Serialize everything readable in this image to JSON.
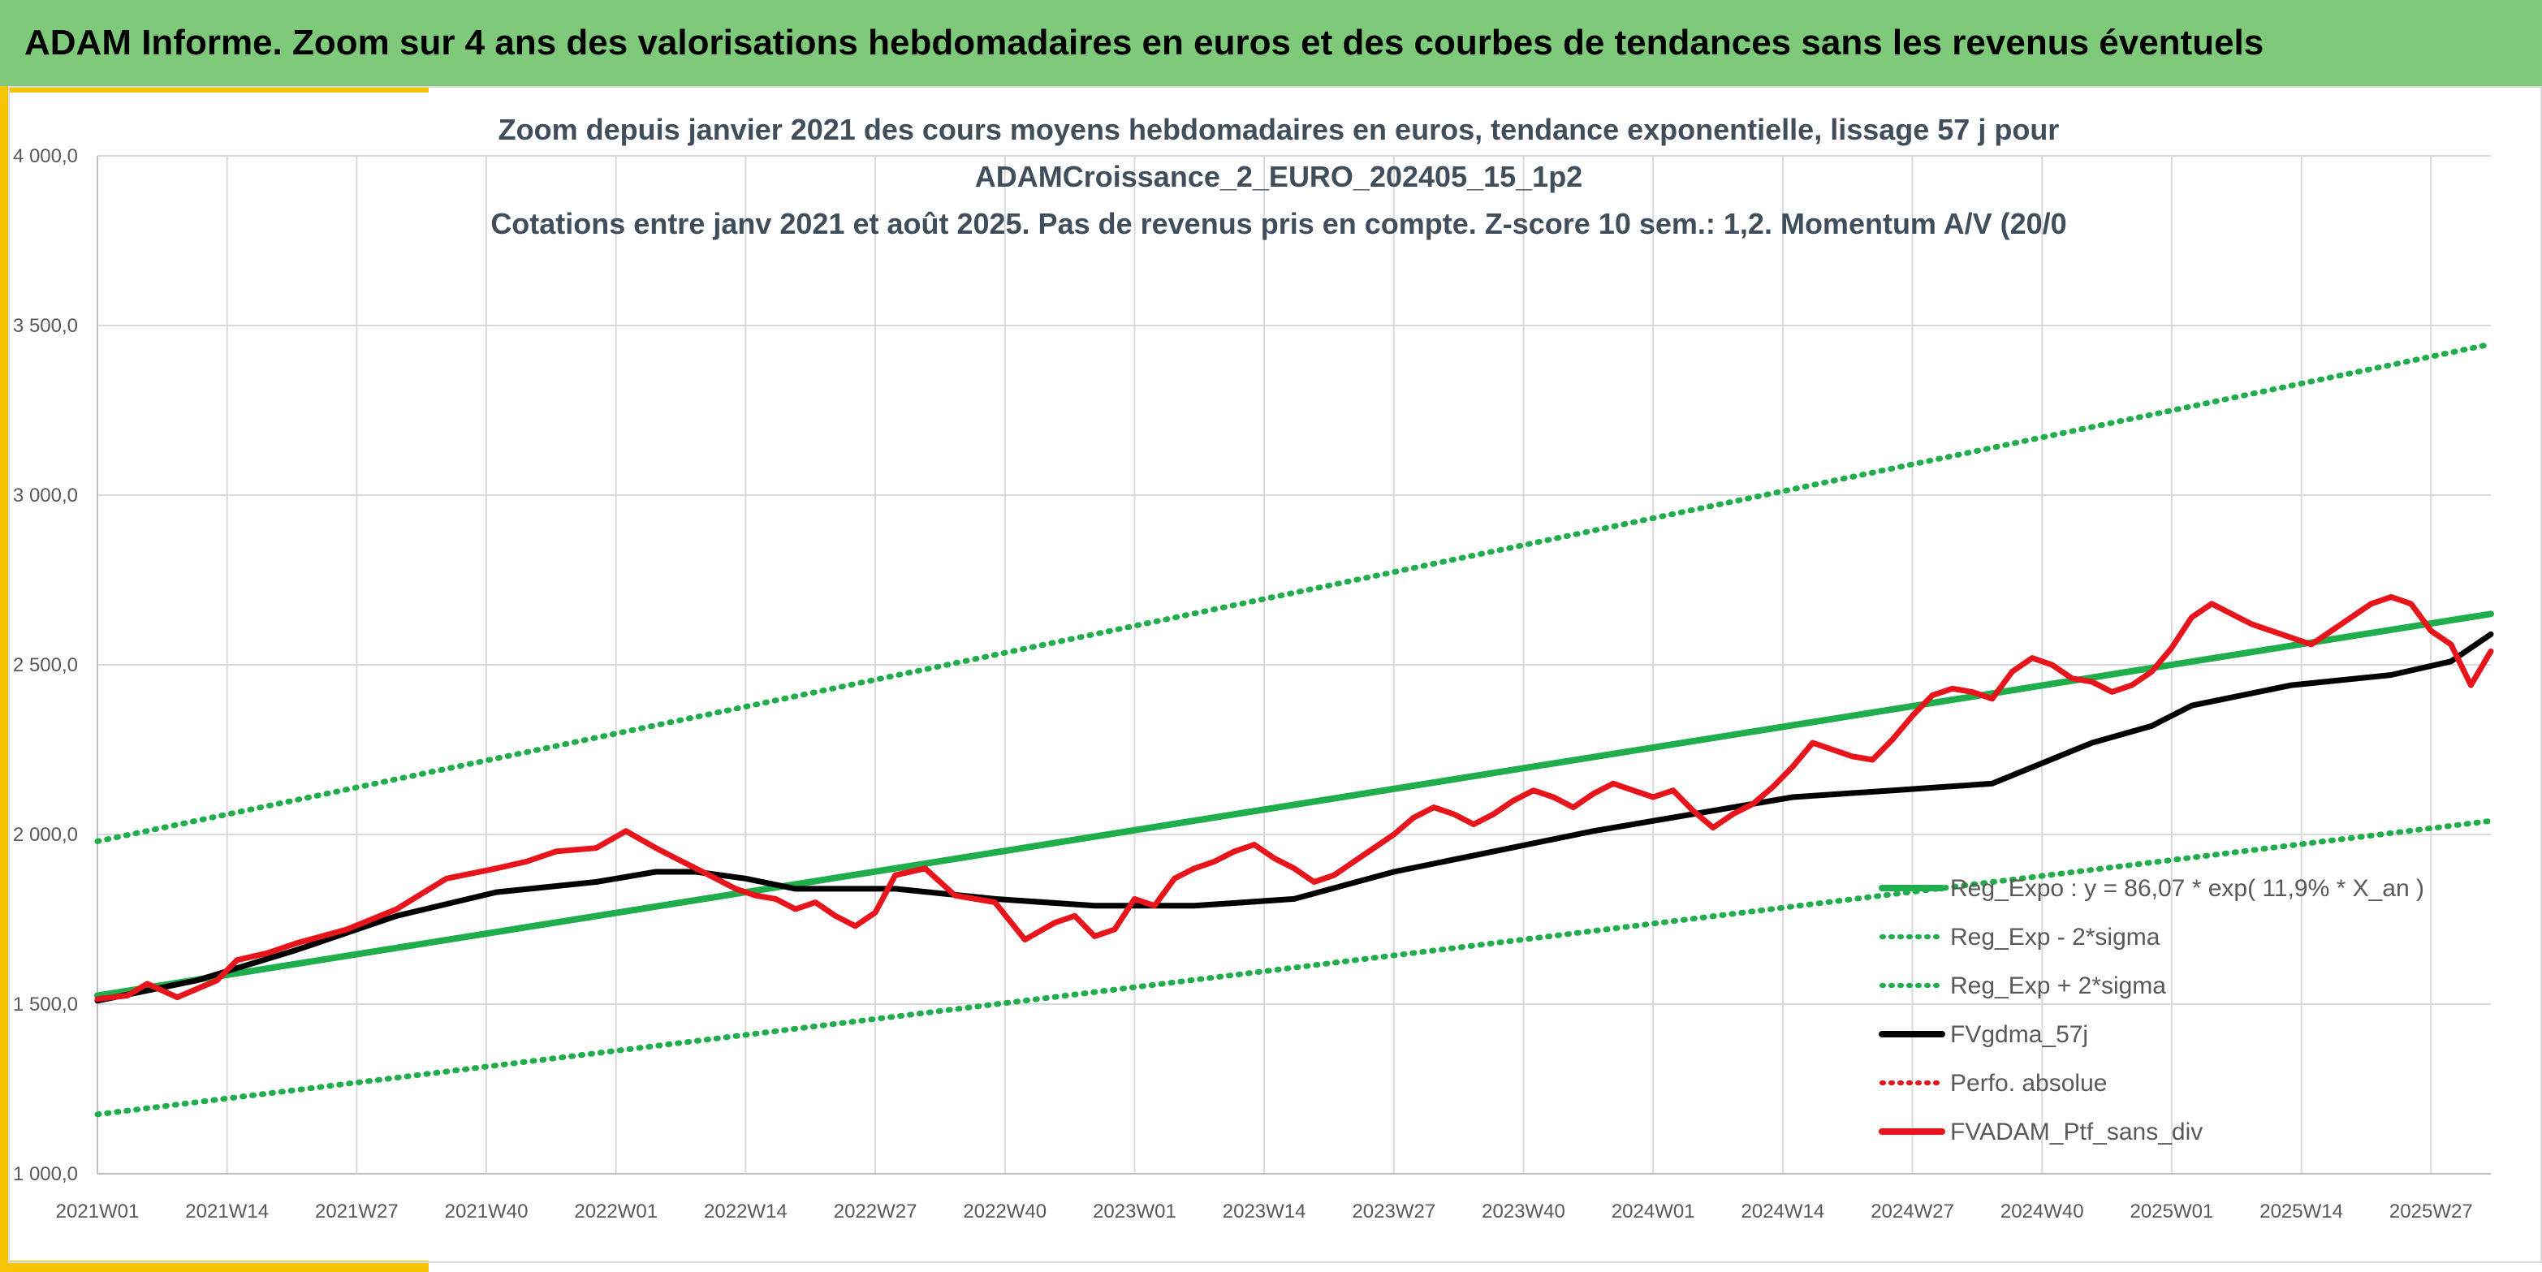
{
  "header": {
    "title": "ADAM Informe. Zoom sur 4 ans des valorisations hebdomadaires en euros et des courbes de tendances sans les revenus éventuels"
  },
  "colors": {
    "banner": "#7fc97a",
    "accent": "#f5c400",
    "trend_green": "#1fae4b",
    "portfolio_red": "#e8141b",
    "moving_avg_black": "#000000"
  },
  "chart_data": {
    "type": "line",
    "title_lines": [
      "Zoom depuis janvier 2021 des cours moyens hebdomadaires en euros, tendance exponentielle, lissage 57 j pour",
      "ADAMCroissance_2_EURO_202405_15_1p2",
      "Cotations entre janv 2021 et août 2025. Pas de revenus pris en compte. Z-score 10 sem.: 1,2. Momentum A/V (20/0"
    ],
    "x_tick_labels": [
      "2021W01",
      "2021W14",
      "2021W27",
      "2021W40",
      "2022W01",
      "2022W14",
      "2022W27",
      "2022W40",
      "2023W01",
      "2023W14",
      "2023W27",
      "2023W40",
      "2024W01",
      "2024W14",
      "2024W27",
      "2024W40",
      "2025W01",
      "2025W14",
      "2025W27"
    ],
    "x_week_step": 13,
    "x_max_index": 240,
    "ylim": [
      1000,
      4000
    ],
    "y_ticks": [
      1000,
      1500,
      2000,
      2500,
      3000,
      3500,
      4000
    ],
    "y_tick_labels": [
      "1 000,0",
      "1 500,0",
      "2 000,0",
      "2 500,0",
      "3 000,0",
      "3 500,0",
      "4 000,0"
    ],
    "grid": true,
    "legend_position": "bottom-right",
    "legend": [
      {
        "label": "Reg_Expo : y = 86,07 * exp( 11,9% *  X_an )",
        "style": "solid",
        "color": "#1fae4b"
      },
      {
        "label": "Reg_Exp - 2*sigma",
        "style": "dotted",
        "color": "#1fae4b"
      },
      {
        "label": "Reg_Exp + 2*sigma",
        "style": "dotted",
        "color": "#1fae4b"
      },
      {
        "label": "FVgdma_57j",
        "style": "solid",
        "color": "#000000"
      },
      {
        "label": "Perfo. absolue",
        "style": "dotted",
        "color": "#e8141b"
      },
      {
        "label": "FVADAM_Ptf_sans_div",
        "style": "solid",
        "color": "#e8141b"
      }
    ],
    "series": [
      {
        "name": "Reg_Expo : y = 86,07 * exp( 11,9% *  X_an )",
        "x": [
          0,
          240
        ],
        "values": [
          1525,
          2650
        ]
      },
      {
        "name": "Reg_Exp - 2*sigma",
        "x": [
          0,
          240
        ],
        "values": [
          1175,
          2040
        ]
      },
      {
        "name": "Reg_Exp + 2*sigma",
        "x": [
          0,
          240
        ],
        "values": [
          1980,
          3445
        ]
      },
      {
        "name": "FVgdma_57j",
        "x": [
          0,
          10,
          20,
          30,
          40,
          50,
          56,
          60,
          65,
          70,
          80,
          90,
          100,
          110,
          120,
          130,
          140,
          150,
          160,
          170,
          180,
          190,
          200,
          206,
          210,
          220,
          230,
          236,
          240
        ],
        "values": [
          1510,
          1570,
          1660,
          1760,
          1830,
          1860,
          1890,
          1890,
          1870,
          1840,
          1840,
          1810,
          1790,
          1790,
          1810,
          1890,
          1950,
          2010,
          2060,
          2110,
          2130,
          2150,
          2270,
          2320,
          2380,
          2440,
          2470,
          2510,
          2590
        ]
      },
      {
        "name": "FVADAM_Ptf_sans_div",
        "x": [
          0,
          3,
          5,
          8,
          12,
          14,
          17,
          20,
          25,
          30,
          35,
          40,
          43,
          46,
          50,
          53,
          56,
          58,
          60,
          62,
          64,
          66,
          68,
          70,
          72,
          74,
          76,
          78,
          80,
          83,
          86,
          90,
          93,
          96,
          98,
          100,
          102,
          104,
          106,
          108,
          110,
          112,
          114,
          116,
          118,
          120,
          122,
          124,
          126,
          128,
          130,
          132,
          134,
          136,
          138,
          140,
          142,
          144,
          146,
          148,
          150,
          152,
          154,
          156,
          158,
          160,
          162,
          164,
          166,
          168,
          170,
          172,
          174,
          176,
          178,
          180,
          182,
          184,
          186,
          188,
          190,
          192,
          194,
          196,
          198,
          200,
          202,
          204,
          206,
          208,
          210,
          212,
          214,
          216,
          218,
          220,
          222,
          224,
          226,
          228,
          230,
          232,
          234,
          236,
          238,
          240
        ],
        "values": [
          1515,
          1525,
          1560,
          1520,
          1570,
          1630,
          1650,
          1680,
          1720,
          1780,
          1870,
          1900,
          1920,
          1950,
          1960,
          2010,
          1960,
          1930,
          1900,
          1870,
          1840,
          1820,
          1810,
          1780,
          1800,
          1760,
          1730,
          1770,
          1880,
          1900,
          1820,
          1800,
          1690,
          1740,
          1760,
          1700,
          1720,
          1810,
          1790,
          1870,
          1900,
          1920,
          1950,
          1970,
          1930,
          1900,
          1860,
          1880,
          1920,
          1960,
          2000,
          2050,
          2080,
          2060,
          2030,
          2060,
          2100,
          2130,
          2110,
          2080,
          2120,
          2150,
          2130,
          2110,
          2130,
          2070,
          2020,
          2060,
          2090,
          2140,
          2200,
          2270,
          2250,
          2230,
          2220,
          2280,
          2350,
          2410,
          2430,
          2420,
          2400,
          2480,
          2520,
          2500,
          2460,
          2450,
          2420,
          2440,
          2480,
          2550,
          2640,
          2680,
          2650,
          2620,
          2600,
          2580,
          2560,
          2600,
          2640,
          2680,
          2700,
          2680,
          2600,
          2560,
          2440,
          2540
        ],
        "note_x_max": 240
      }
    ]
  }
}
